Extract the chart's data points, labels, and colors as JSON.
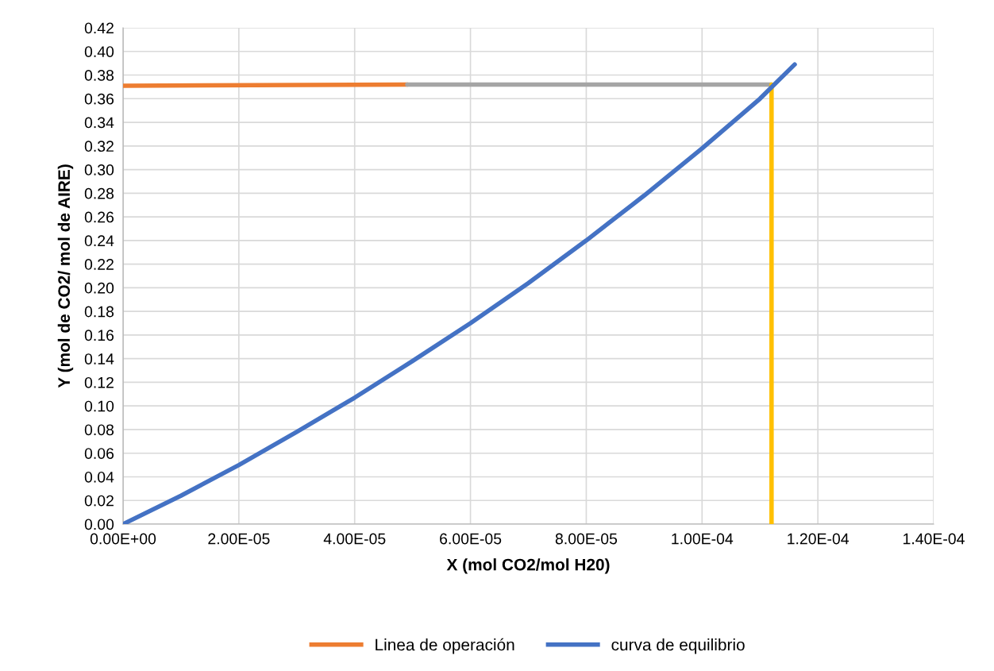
{
  "chart_data": {
    "type": "line",
    "xlabel": "X (mol CO2/mol H20)",
    "ylabel": "Y (mol de CO2/ mol de AIRE)",
    "series": [
      {
        "name": "Linea de operación",
        "color": "#ed7d31",
        "x": [
          0,
          4.91e-05
        ],
        "values": [
          0.371,
          0.372
        ]
      },
      {
        "color": "#a5a5a5",
        "x": [
          4.91e-05,
          0.000112
        ],
        "values": [
          0.372,
          0.372
        ]
      },
      {
        "color": "#ffc000",
        "x": [
          0.000112,
          0.000112
        ],
        "values": [
          0,
          0.372
        ]
      },
      {
        "name": "curva de equilibrio",
        "color": "#4472c4",
        "x": [
          0,
          1e-05,
          2e-05,
          3e-05,
          4e-05,
          5e-05,
          6e-05,
          7e-05,
          8e-05,
          9e-05,
          0.0001,
          0.00011,
          0.000116
        ],
        "values": [
          0,
          0.024,
          0.05,
          0.078,
          0.107,
          0.138,
          0.17,
          0.204,
          0.24,
          0.278,
          0.318,
          0.36,
          0.389
        ]
      }
    ],
    "xlim": [
      0,
      0.00014
    ],
    "xticks": [
      {
        "value": 0,
        "label": "0.00E+00"
      },
      {
        "value": 2e-05,
        "label": "2.00E-05"
      },
      {
        "value": 4e-05,
        "label": "4.00E-05"
      },
      {
        "value": 6e-05,
        "label": "6.00E-05"
      },
      {
        "value": 8e-05,
        "label": "8.00E-05"
      },
      {
        "value": 0.0001,
        "label": "1.00E-04"
      },
      {
        "value": 0.00012,
        "label": "1.20E-04"
      },
      {
        "value": 0.00014,
        "label": "1.40E-04"
      }
    ],
    "ylim": [
      0,
      0.42
    ],
    "yticks": [
      {
        "value": 0,
        "label": "0.00"
      },
      {
        "value": 0.02,
        "label": "0.02"
      },
      {
        "value": 0.04,
        "label": "0.04"
      },
      {
        "value": 0.06,
        "label": "0.06"
      },
      {
        "value": 0.08,
        "label": "0.08"
      },
      {
        "value": 0.1,
        "label": "0.10"
      },
      {
        "value": 0.12,
        "label": "0.12"
      },
      {
        "value": 0.14,
        "label": "0.14"
      },
      {
        "value": 0.16,
        "label": "0.16"
      },
      {
        "value": 0.18,
        "label": "0.18"
      },
      {
        "value": 0.2,
        "label": "0.20"
      },
      {
        "value": 0.22,
        "label": "0.22"
      },
      {
        "value": 0.24,
        "label": "0.24"
      },
      {
        "value": 0.26,
        "label": "0.26"
      },
      {
        "value": 0.28,
        "label": "0.28"
      },
      {
        "value": 0.3,
        "label": "0.30"
      },
      {
        "value": 0.32,
        "label": "0.32"
      },
      {
        "value": 0.34,
        "label": "0.34"
      },
      {
        "value": 0.36,
        "label": "0.36"
      },
      {
        "value": 0.38,
        "label": "0.38"
      },
      {
        "value": 0.4,
        "label": "0.40"
      },
      {
        "value": 0.42,
        "label": "0.42"
      }
    ],
    "grid": true,
    "legend": "bottom",
    "marker": "none",
    "line_style": "solid"
  }
}
